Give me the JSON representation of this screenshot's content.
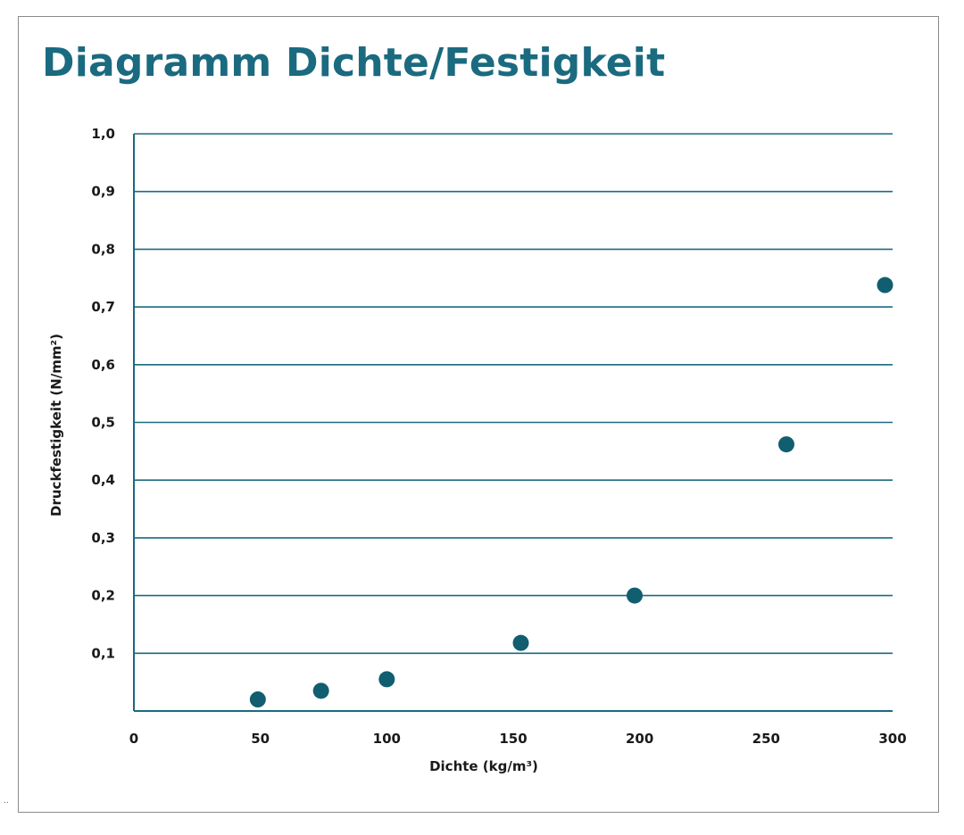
{
  "stray_mark": "..",
  "colors": {
    "accent": "#1a6a80",
    "grid": "#1a6a80",
    "point": "#115e70",
    "text": "#1a1a1a"
  },
  "chart_data": {
    "type": "scatter",
    "title": "Diagramm Dichte/Festigkeit",
    "xlabel": "Dichte (kg/m³)",
    "ylabel": "Druckfestigkeit (N/mm²)",
    "xlim": [
      0,
      300
    ],
    "ylim": [
      0,
      1.0
    ],
    "grid": true,
    "xticks": [
      0,
      50,
      100,
      150,
      200,
      250,
      300
    ],
    "xtick_labels": [
      "0",
      "50",
      "100",
      "150",
      "200",
      "250",
      "300"
    ],
    "yticks": [
      0.1,
      0.2,
      0.3,
      0.4,
      0.5,
      0.6,
      0.7,
      0.8,
      0.9,
      1.0
    ],
    "ytick_labels": [
      "0,1",
      "0,2",
      "0,3",
      "0,4",
      "0,5",
      "0,6",
      "0,7",
      "0,8",
      "0,9",
      "1,0"
    ],
    "series": [
      {
        "name": "Dichte/Festigkeit",
        "x": [
          49,
          74,
          100,
          153,
          198,
          258,
          297
        ],
        "y": [
          0.02,
          0.035,
          0.055,
          0.118,
          0.2,
          0.462,
          0.738
        ]
      }
    ]
  }
}
